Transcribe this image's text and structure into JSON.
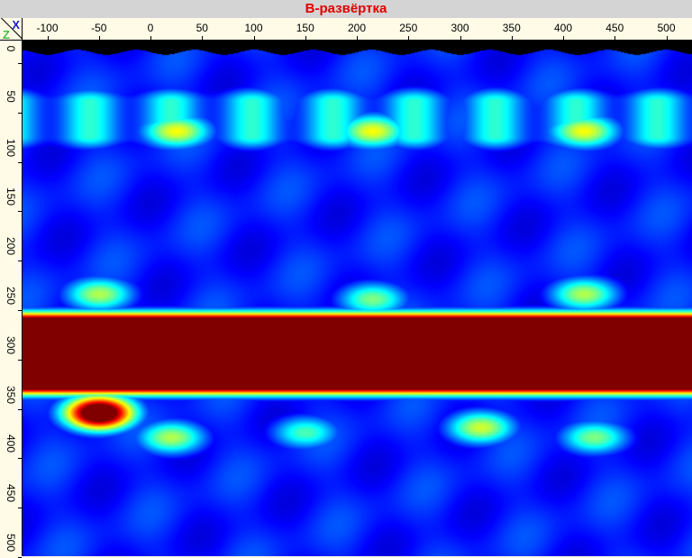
{
  "window": {
    "title": "B-развёртка"
  },
  "chart_data": {
    "type": "heatmap",
    "title": "B-развёртка",
    "xlabel": "X",
    "ylabel": "Z",
    "xlim": [
      -125,
      525
    ],
    "zlim": [
      0,
      520
    ],
    "x_ticks": [
      -100,
      -50,
      0,
      50,
      100,
      150,
      200,
      250,
      300,
      350,
      400,
      450,
      500
    ],
    "z_ticks": [
      0,
      50,
      100,
      150,
      200,
      250,
      300,
      350,
      400,
      450,
      500
    ],
    "colormap": "jet",
    "background_level": 0.15,
    "features": [
      {
        "kind": "band",
        "x": [
          -125,
          525
        ],
        "z": [
          55,
          90
        ],
        "level": 0.42
      },
      {
        "kind": "spot",
        "x": 25,
        "z": 85,
        "level": 0.62
      },
      {
        "kind": "spot",
        "x": 215,
        "z": 85,
        "level": 0.62
      },
      {
        "kind": "spot",
        "x": 420,
        "z": 85,
        "level": 0.62
      },
      {
        "kind": "spot",
        "x": -50,
        "z": 250,
        "level": 0.55
      },
      {
        "kind": "spot",
        "x": 215,
        "z": 255,
        "level": 0.5
      },
      {
        "kind": "spot",
        "x": 420,
        "z": 250,
        "level": 0.55
      },
      {
        "kind": "band",
        "x": [
          -125,
          525
        ],
        "z": [
          280,
          340
        ],
        "level": 1.0
      },
      {
        "kind": "spot",
        "x": -50,
        "z": 370,
        "level": 0.95
      },
      {
        "kind": "spot",
        "x": 20,
        "z": 395,
        "level": 0.55
      },
      {
        "kind": "spot",
        "x": 150,
        "z": 390,
        "level": 0.45
      },
      {
        "kind": "spot",
        "x": 320,
        "z": 385,
        "level": 0.58
      },
      {
        "kind": "spot",
        "x": 430,
        "z": 395,
        "level": 0.5
      }
    ]
  }
}
